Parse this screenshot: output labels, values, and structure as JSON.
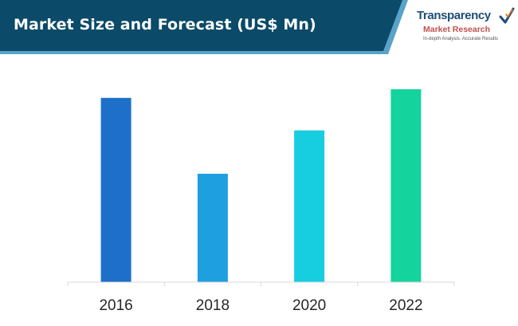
{
  "header": {
    "title": "Market Size and Forecast (US$ Mn)",
    "band_color": "#0b4a68",
    "accent_color": "#5aa3c8"
  },
  "logo": {
    "line1": "Transparency",
    "line2": "Market Research",
    "line3": "In-depth Analysis. Accurate Results",
    "check_icon": "checkmark-icon"
  },
  "chart_data": {
    "type": "bar",
    "title": "Market Size and Forecast (US$ Mn)",
    "categories": [
      "2016",
      "2018",
      "2020",
      "2022"
    ],
    "values": [
      85,
      50,
      70,
      89
    ],
    "colors": [
      "#1e6fc9",
      "#1e9fe0",
      "#16cee0",
      "#15d39c"
    ],
    "ylim": [
      0,
      100
    ],
    "xlabel": "",
    "ylabel": "",
    "grid": false,
    "legend": "none"
  }
}
